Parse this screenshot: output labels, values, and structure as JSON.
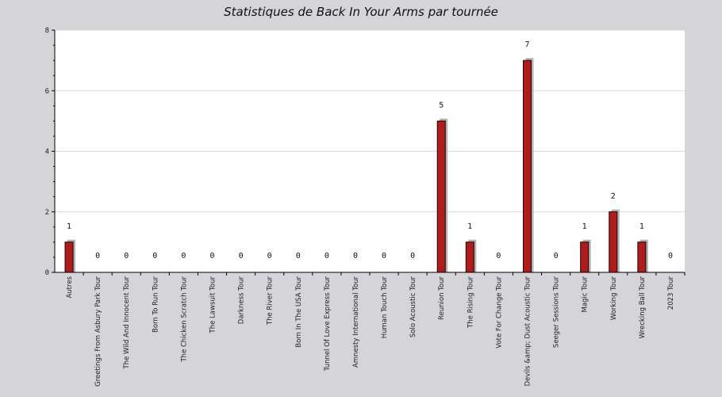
{
  "chart_data": {
    "type": "bar",
    "title": "Statistiques de Back In Your Arms par tournée",
    "xlabel": "",
    "ylabel": "",
    "ylim": [
      0,
      8
    ],
    "yticks": [
      0,
      2,
      4,
      6,
      8
    ],
    "grid": true,
    "categories": [
      "Autres",
      "Greetings From Asbury Park Tour",
      "The Wild And Innocent Tour",
      "Born To Run Tour",
      "The Chicken Scratch Tour",
      "The Lawsuit Tour",
      "Darkness Tour",
      "The River Tour",
      "Born In The USA Tour",
      "Tunnel Of Love Express Tour",
      "Amnesty International Tour",
      "Human Touch Tour",
      "Solo Acoustic Tour",
      "Reunion Tour",
      "The Rising Tour",
      "Vote For Change Tour",
      "Devils &amp; Dust Acoustic Tour",
      "Seeger Sessions Tour",
      "Magic Tour",
      "Working Tour",
      "Wrecking Ball Tour",
      "2023 Tour"
    ],
    "values": [
      1,
      0,
      0,
      0,
      0,
      0,
      0,
      0,
      0,
      0,
      0,
      0,
      0,
      5,
      1,
      0,
      7,
      0,
      1,
      2,
      1,
      0
    ],
    "colors": {
      "bar": "#b01c1c",
      "bar_border": "#1a0505",
      "shadow": "#b3b3b3",
      "plot_bg": "#ffffff",
      "page_bg": "#d5d4d9",
      "grid": "#d8d8d8"
    }
  }
}
